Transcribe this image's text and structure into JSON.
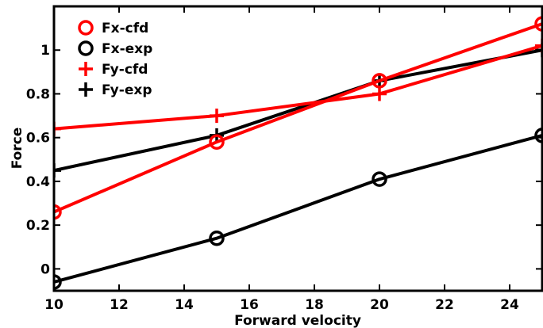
{
  "chart_data": {
    "type": "line",
    "xlabel": "Forward velocity",
    "ylabel": "Force",
    "xlim": [
      10,
      25
    ],
    "ylim": [
      -0.1,
      1.2
    ],
    "xticks": [
      "10",
      "12",
      "14",
      "16",
      "18",
      "20",
      "22",
      "24"
    ],
    "yticks": [
      "0",
      "0.2",
      "0.4",
      "0.6",
      "0.8",
      "1"
    ],
    "grid": false,
    "legend_position": "top-left",
    "series": [
      {
        "name": "Fx-cfd",
        "color": "#ff0000",
        "marker": "circle",
        "x": [
          10,
          15,
          20,
          25
        ],
        "y": [
          0.26,
          0.58,
          0.86,
          1.12
        ]
      },
      {
        "name": "Fx-exp",
        "color": "#000000",
        "marker": "circle",
        "x": [
          10,
          15,
          20,
          25
        ],
        "y": [
          -0.06,
          0.14,
          0.41,
          0.61
        ]
      },
      {
        "name": "Fy-cfd",
        "color": "#ff0000",
        "marker": "plus",
        "x": [
          10,
          15,
          20,
          25
        ],
        "y": [
          0.64,
          0.7,
          0.8,
          1.02
        ]
      },
      {
        "name": "Fy-exp",
        "color": "#000000",
        "marker": "plus",
        "x": [
          10,
          15,
          20,
          25
        ],
        "y": [
          0.45,
          0.61,
          0.86,
          1.0
        ]
      }
    ]
  }
}
